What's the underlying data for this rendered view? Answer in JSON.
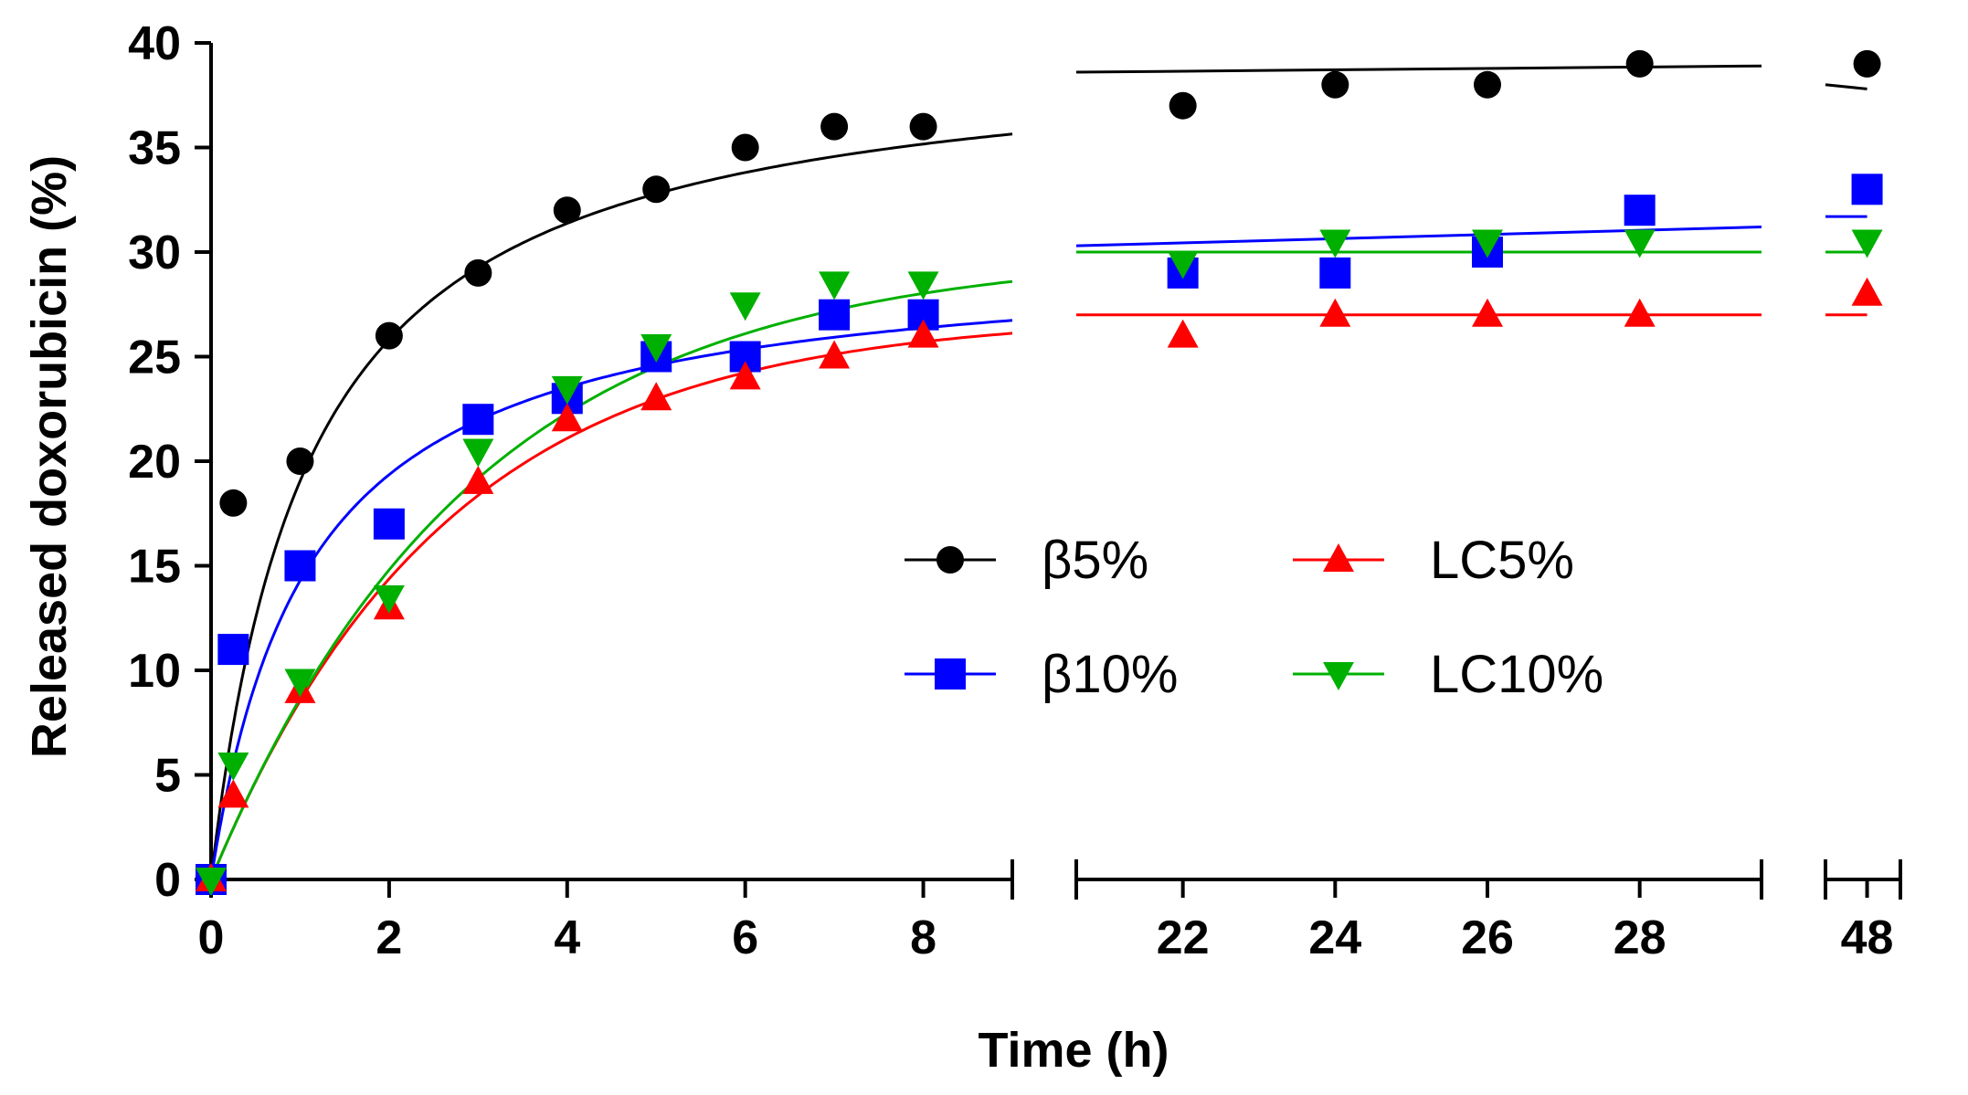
{
  "chart_data": {
    "type": "scatter",
    "title": "",
    "xlabel": "Time (h)",
    "ylabel": "Released doxorubicin (%)",
    "ylim": [
      0,
      40
    ],
    "yticks": [
      0,
      5,
      10,
      15,
      20,
      25,
      30,
      35,
      40
    ],
    "x_segments": [
      {
        "range": [
          0,
          9
        ],
        "ticks": [
          0,
          2,
          4,
          6,
          8
        ]
      },
      {
        "range": [
          20.6,
          29.6
        ],
        "ticks": [
          22,
          24,
          26,
          28
        ]
      },
      {
        "range": [
          47,
          48.8
        ],
        "ticks": [
          48
        ]
      }
    ],
    "legend": {
      "placement": "center-right",
      "columns": 2
    },
    "series": [
      {
        "name": "β5%",
        "color": "#000000",
        "marker": "circle",
        "x": [
          0,
          0.25,
          1,
          2,
          3,
          4,
          5,
          6,
          7,
          8,
          22,
          24,
          26,
          28,
          48
        ],
        "y": [
          0,
          18,
          20,
          26,
          29,
          32,
          33,
          35,
          36,
          36,
          37,
          38,
          38,
          39,
          39
        ],
        "fit": {
          "model": "hyperbolic",
          "ymax": 40.0,
          "k": 1.1
        },
        "fit_late": [
          [
            20.6,
            38.6
          ],
          [
            29.6,
            38.9
          ]
        ],
        "fit_48": [
          [
            47,
            38.0
          ],
          [
            48,
            37.8
          ]
        ]
      },
      {
        "name": "β10%",
        "color": "#0000ff",
        "marker": "square",
        "x": [
          0,
          0.25,
          1,
          2,
          3,
          4,
          5,
          6,
          7,
          8,
          22,
          24,
          26,
          28,
          48
        ],
        "y": [
          0,
          11,
          15,
          17,
          22,
          23,
          25,
          25,
          27,
          27,
          29,
          29,
          30,
          32,
          33
        ],
        "fit": {
          "model": "hyperbolic",
          "ymax": 30.0,
          "k": 1.1
        },
        "fit_late": [
          [
            20.6,
            30.3
          ],
          [
            29.6,
            31.2
          ]
        ],
        "fit_48": [
          [
            47,
            31.7
          ],
          [
            48,
            31.7
          ]
        ]
      },
      {
        "name": "LC5%",
        "color": "#ff0000",
        "marker": "triangle-up",
        "x": [
          0,
          0.25,
          1,
          2,
          3,
          4,
          5,
          6,
          7,
          8,
          22,
          24,
          26,
          28,
          48
        ],
        "y": [
          0,
          4,
          9,
          13,
          19,
          22,
          23,
          24,
          25,
          26,
          26,
          27,
          27,
          27,
          28
        ],
        "fit": {
          "model": "exponential",
          "ymax": 27.0,
          "k": 0.38
        },
        "fit_late": [
          [
            20.6,
            27.0
          ],
          [
            29.6,
            27.0
          ]
        ],
        "fit_48": [
          [
            47,
            27.0
          ],
          [
            48,
            27.0
          ]
        ]
      },
      {
        "name": "LC10%",
        "color": "#00b000",
        "marker": "triangle-down",
        "x": [
          0,
          0.25,
          1,
          2,
          3,
          4,
          5,
          6,
          7,
          8,
          22,
          24,
          26,
          28,
          48
        ],
        "y": [
          0,
          5.5,
          9.5,
          13.5,
          20.5,
          23.5,
          25.5,
          27.5,
          28.5,
          28.5,
          29.5,
          30.5,
          30.5,
          30.5,
          30.5
        ],
        "fit": {
          "model": "exponential",
          "ymax": 30.0,
          "k": 0.34
        },
        "fit_late": [
          [
            20.6,
            30.0
          ],
          [
            29.6,
            30.0
          ]
        ],
        "fit_48": [
          [
            47,
            30.0
          ],
          [
            48,
            30.0
          ]
        ]
      }
    ]
  }
}
